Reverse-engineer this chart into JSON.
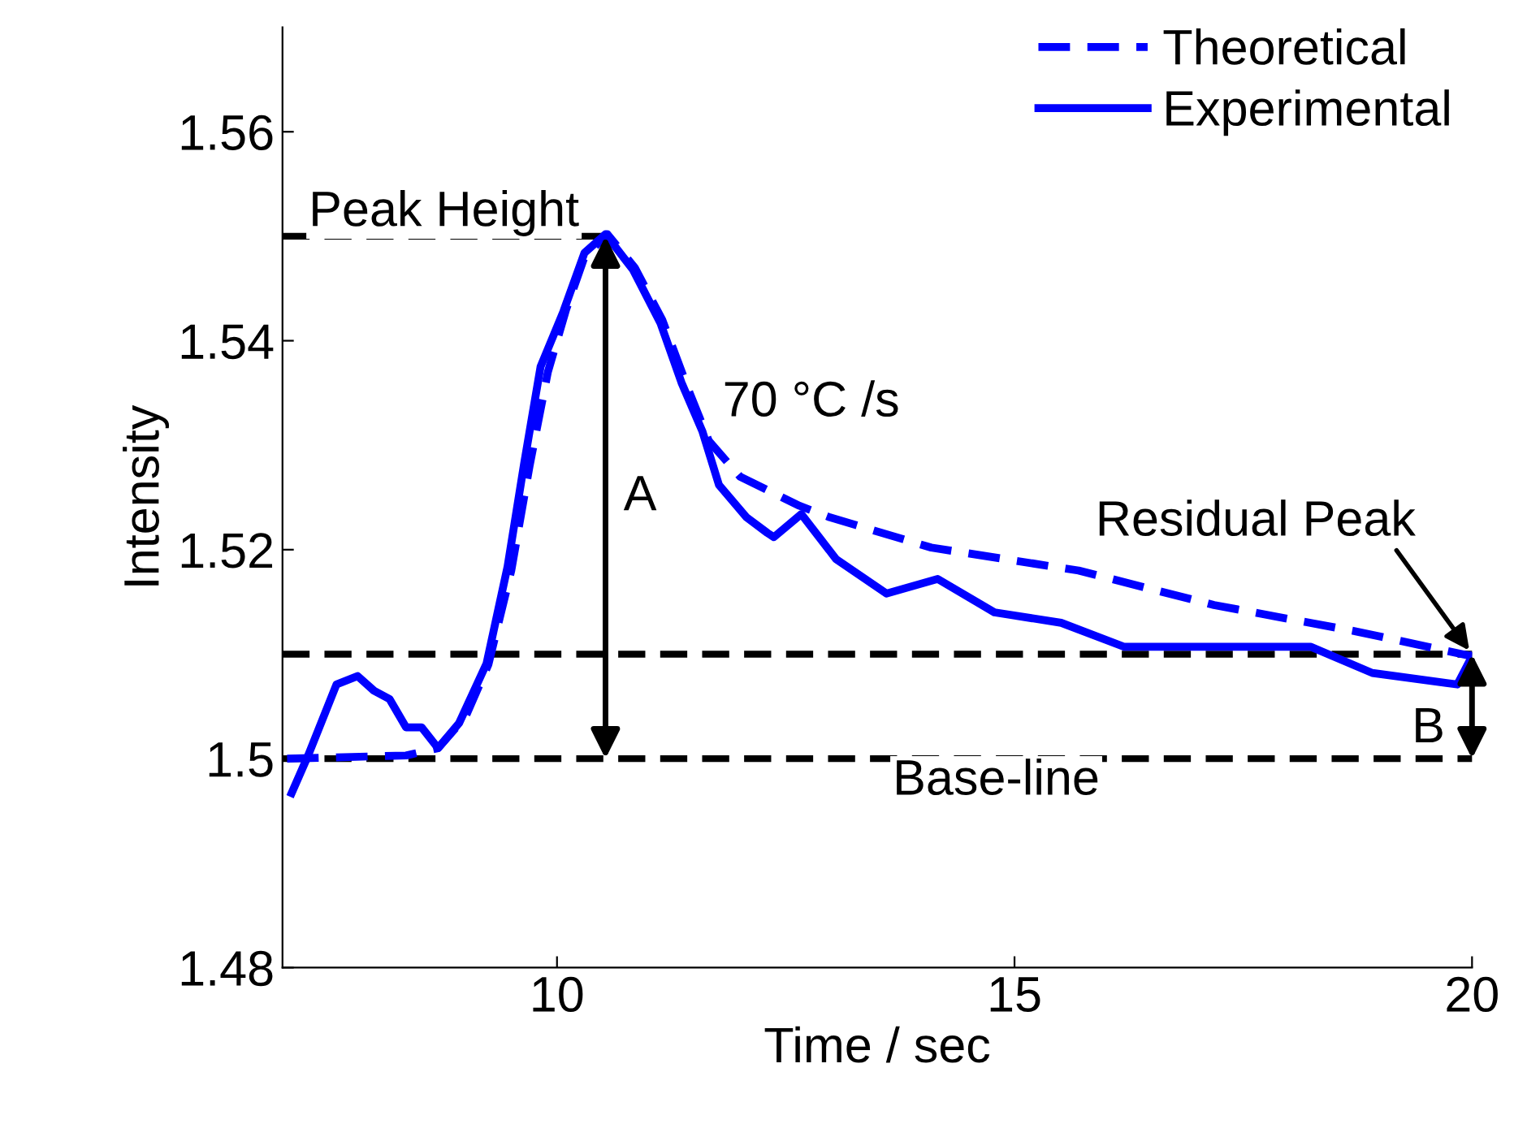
{
  "chart_data": {
    "type": "line",
    "xlabel": "Time / sec",
    "ylabel": "Intensity",
    "xlim": [
      7,
      20
    ],
    "ylim": [
      1.48,
      1.57
    ],
    "xticks": [
      10,
      15,
      20
    ],
    "yticks": [
      1.48,
      {
        "value": 1.5,
        "label": "1.5"
      },
      1.52,
      1.54,
      1.56
    ],
    "legend": "top right",
    "grid": false,
    "series": [
      {
        "name": "Theoretical",
        "color": "#0000ff",
        "line_style": "dashed",
        "x": [
          7.05,
          8.35,
          8.7,
          9.0,
          9.25,
          9.5,
          9.7,
          9.9,
          10.1,
          10.3,
          10.55,
          10.85,
          11.15,
          11.45,
          11.66,
          12.0,
          12.65,
          12.98,
          14.09,
          15.7,
          17.18,
          18.72,
          20.0
        ],
        "values": [
          1.5,
          1.5003,
          1.501,
          1.504,
          1.509,
          1.518,
          1.528,
          1.537,
          1.543,
          1.548,
          1.5502,
          1.547,
          1.542,
          1.535,
          1.5304,
          1.527,
          1.5242,
          1.5231,
          1.5202,
          1.518,
          1.5147,
          1.5122,
          1.5098
        ]
      },
      {
        "name": "Experimental",
        "color": "#0000ff",
        "line_style": "solid",
        "x": [
          7.1,
          7.28,
          7.59,
          7.82,
          8.0,
          8.17,
          8.35,
          8.52,
          8.7,
          8.93,
          9.23,
          9.46,
          9.64,
          9.82,
          10.07,
          10.3,
          10.53,
          10.83,
          11.13,
          11.36,
          11.59,
          11.77,
          12.07,
          12.3,
          12.37,
          12.67,
          13.05,
          13.6,
          14.16,
          14.78,
          15.51,
          16.2,
          18.24,
          18.91,
          19.84,
          20.0
        ],
        "values": [
          1.4967,
          1.5003,
          1.5071,
          1.5079,
          1.5065,
          1.5057,
          1.503,
          1.503,
          1.501,
          1.5034,
          1.5091,
          1.5184,
          1.5282,
          1.5375,
          1.5428,
          1.5484,
          1.5502,
          1.5468,
          1.5417,
          1.536,
          1.5313,
          1.5262,
          1.5231,
          1.5216,
          1.5212,
          1.5234,
          1.5191,
          1.5158,
          1.5172,
          1.514,
          1.513,
          1.5107,
          1.5107,
          1.5082,
          1.5071,
          1.5098
        ]
      }
    ],
    "ref_lines": [
      {
        "axis": "y",
        "value": 1.55,
        "label": "Peak Height",
        "color": "#000000",
        "line_style": "dashed"
      },
      {
        "axis": "y",
        "value": 1.51,
        "color": "#000000",
        "line_style": "dashed"
      },
      {
        "axis": "y",
        "value": 1.5,
        "label": "Base-line",
        "color": "#000000",
        "line_style": "dashed"
      }
    ],
    "annotations": [
      "A",
      "B",
      "70 °C /s",
      {
        "text": "Residual Peak",
        "x": 20.0,
        "y": 1.51
      }
    ]
  }
}
